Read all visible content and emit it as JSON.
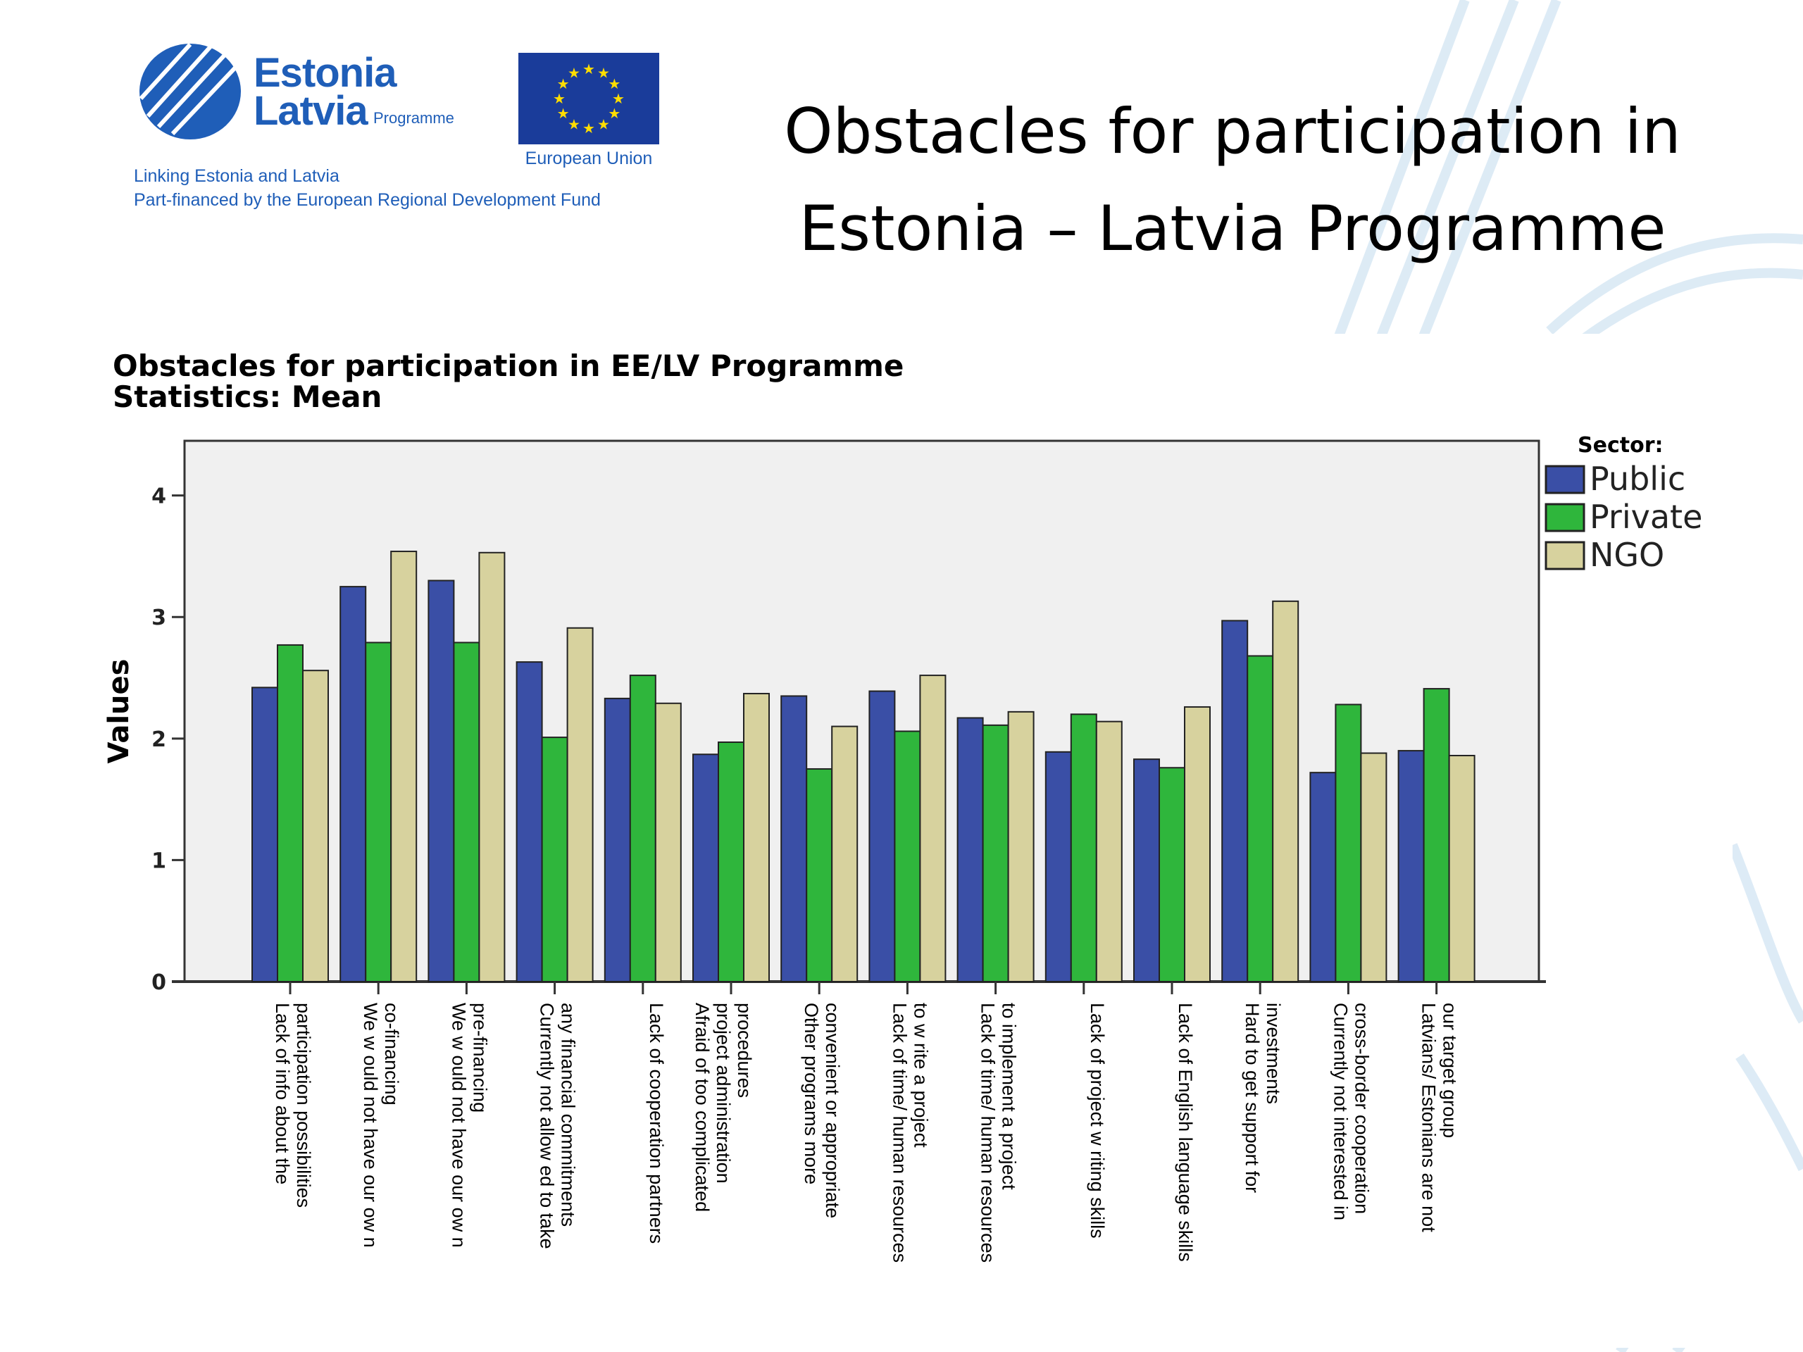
{
  "logo": {
    "line1": "Estonia",
    "line2": "Latvia",
    "programme": "Programme",
    "eu_label": "European Union",
    "tagline1": "Linking Estonia and Latvia",
    "tagline2": "Part-financed by the European Regional Development Fund"
  },
  "slide_title": {
    "line1": "Obstacles for participation in",
    "line2": "Estonia – Latvia Programme"
  },
  "colors": {
    "Public": "#3a4fa6",
    "Private": "#2fb63c",
    "NGO": "#d7d29e",
    "plot_bg": "#f0f0f0",
    "brand_blue": "#1f5eb8"
  },
  "chart_data": {
    "type": "bar",
    "title": "Obstacles for participation in EE/LV Programme",
    "subtitle": "Statistics: Mean",
    "ylabel": "Values",
    "xlabel": "",
    "ylim": [
      0,
      4.45
    ],
    "yticks": [
      0,
      1,
      2,
      3,
      4
    ],
    "grid": false,
    "legend_title": "Sector:",
    "legend_position": "right",
    "categories": [
      [
        "Lack of info about the",
        "participation possibilities"
      ],
      [
        "We w ould not have our ow n",
        "co-financing"
      ],
      [
        "We w ould not have our ow n",
        "pre-financing"
      ],
      [
        "Currently not allow ed to take",
        "any financial commitments"
      ],
      [
        "Lack of cooperation partners"
      ],
      [
        "Afraid of too complicated",
        "project administration",
        "procedures"
      ],
      [
        "Other programs more",
        "convenient or appropriate"
      ],
      [
        "Lack of time/ human resources",
        "to w rite a project"
      ],
      [
        "Lack of time/ human resources",
        "to implement a project"
      ],
      [
        "Lack of project w riting skills"
      ],
      [
        "Lack of English language skills"
      ],
      [
        "Hard to get support for",
        "investments"
      ],
      [
        "Currently not interested in",
        "cross-border cooperation"
      ],
      [
        "Latvians/ Estonians are not",
        "our target group"
      ]
    ],
    "series": [
      {
        "name": "Public",
        "values": [
          2.42,
          3.25,
          3.3,
          2.63,
          2.33,
          1.87,
          2.35,
          2.39,
          2.17,
          1.89,
          1.83,
          2.97,
          1.72,
          1.9
        ]
      },
      {
        "name": "Private",
        "values": [
          2.77,
          2.79,
          2.79,
          2.01,
          2.52,
          1.97,
          1.75,
          2.06,
          2.11,
          2.2,
          1.76,
          2.68,
          2.28,
          2.41
        ]
      },
      {
        "name": "NGO",
        "values": [
          2.56,
          3.54,
          3.53,
          2.91,
          2.29,
          2.37,
          2.1,
          2.52,
          2.22,
          2.14,
          2.26,
          3.13,
          1.88,
          1.86
        ]
      }
    ]
  }
}
